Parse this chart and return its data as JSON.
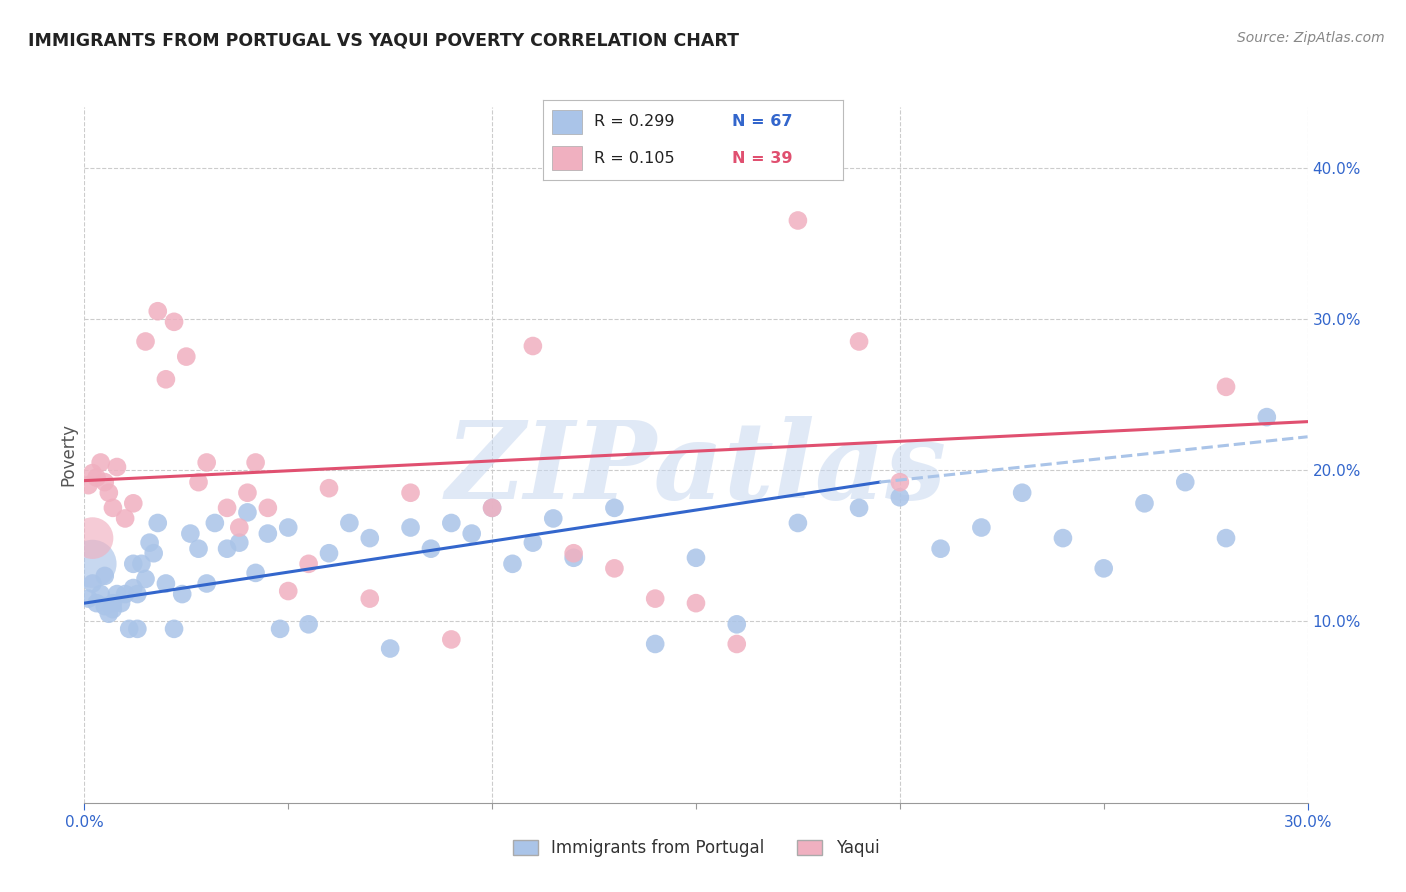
{
  "title": "IMMIGRANTS FROM PORTUGAL VS YAQUI POVERTY CORRELATION CHART",
  "source_text": "Source: ZipAtlas.com",
  "ylabel": "Poverty",
  "xlim": [
    0.0,
    0.3
  ],
  "ylim": [
    -0.02,
    0.44
  ],
  "xtick_positions": [
    0.0,
    0.3
  ],
  "xtick_labels": [
    "0.0%",
    "30.0%"
  ],
  "yticks_right": [
    0.1,
    0.2,
    0.3,
    0.4
  ],
  "ytick_right_labels": [
    "10.0%",
    "20.0%",
    "30.0%",
    "40.0%"
  ],
  "grid_yticks": [
    0.1,
    0.2,
    0.3,
    0.4
  ],
  "background_color": "#ffffff",
  "scatter_blue_color": "#aac4e8",
  "scatter_pink_color": "#f0b0c0",
  "line_blue_color": "#3366cc",
  "line_pink_color": "#e05070",
  "line_blue_dashed_color": "#aac4e8",
  "watermark_text": "ZIPatlas",
  "watermark_color": "#c8d8f0",
  "blue_scatter_x": [
    0.001,
    0.002,
    0.003,
    0.004,
    0.005,
    0.005,
    0.006,
    0.007,
    0.007,
    0.008,
    0.009,
    0.01,
    0.011,
    0.012,
    0.012,
    0.013,
    0.013,
    0.014,
    0.015,
    0.016,
    0.017,
    0.018,
    0.02,
    0.022,
    0.024,
    0.026,
    0.028,
    0.03,
    0.032,
    0.035,
    0.038,
    0.04,
    0.042,
    0.045,
    0.048,
    0.05,
    0.055,
    0.06,
    0.065,
    0.07,
    0.075,
    0.08,
    0.085,
    0.09,
    0.095,
    0.1,
    0.105,
    0.11,
    0.115,
    0.12,
    0.13,
    0.14,
    0.15,
    0.16,
    0.175,
    0.19,
    0.2,
    0.21,
    0.22,
    0.23,
    0.24,
    0.25,
    0.26,
    0.27,
    0.28,
    0.29
  ],
  "blue_scatter_y": [
    0.115,
    0.125,
    0.112,
    0.118,
    0.11,
    0.13,
    0.105,
    0.112,
    0.108,
    0.118,
    0.112,
    0.118,
    0.095,
    0.122,
    0.138,
    0.118,
    0.095,
    0.138,
    0.128,
    0.152,
    0.145,
    0.165,
    0.125,
    0.095,
    0.118,
    0.158,
    0.148,
    0.125,
    0.165,
    0.148,
    0.152,
    0.172,
    0.132,
    0.158,
    0.095,
    0.162,
    0.098,
    0.145,
    0.165,
    0.155,
    0.082,
    0.162,
    0.148,
    0.165,
    0.158,
    0.175,
    0.138,
    0.152,
    0.168,
    0.142,
    0.175,
    0.085,
    0.142,
    0.098,
    0.165,
    0.175,
    0.182,
    0.148,
    0.162,
    0.185,
    0.155,
    0.135,
    0.178,
    0.192,
    0.155,
    0.235
  ],
  "blue_large_x": [
    0.002
  ],
  "blue_large_y": [
    0.138
  ],
  "pink_scatter_x": [
    0.001,
    0.002,
    0.003,
    0.004,
    0.005,
    0.006,
    0.007,
    0.008,
    0.01,
    0.012,
    0.015,
    0.018,
    0.02,
    0.022,
    0.025,
    0.028,
    0.03,
    0.035,
    0.038,
    0.04,
    0.042,
    0.045,
    0.05,
    0.055,
    0.06,
    0.07,
    0.08,
    0.09,
    0.1,
    0.11,
    0.12,
    0.13,
    0.14,
    0.15,
    0.16,
    0.175,
    0.19,
    0.2,
    0.28
  ],
  "pink_scatter_y": [
    0.19,
    0.198,
    0.195,
    0.205,
    0.192,
    0.185,
    0.175,
    0.202,
    0.168,
    0.178,
    0.285,
    0.305,
    0.26,
    0.298,
    0.275,
    0.192,
    0.205,
    0.175,
    0.162,
    0.185,
    0.205,
    0.175,
    0.12,
    0.138,
    0.188,
    0.115,
    0.185,
    0.088,
    0.175,
    0.282,
    0.145,
    0.135,
    0.115,
    0.112,
    0.085,
    0.365,
    0.285,
    0.192,
    0.255
  ],
  "pink_large_x": [
    0.002
  ],
  "pink_large_y": [
    0.155
  ],
  "blue_line_x": [
    0.0,
    0.195
  ],
  "blue_line_y": [
    0.112,
    0.192
  ],
  "blue_dashed_line_x": [
    0.195,
    0.3
  ],
  "blue_dashed_line_y": [
    0.192,
    0.222
  ],
  "pink_line_x": [
    0.0,
    0.3
  ],
  "pink_line_y": [
    0.193,
    0.232
  ]
}
